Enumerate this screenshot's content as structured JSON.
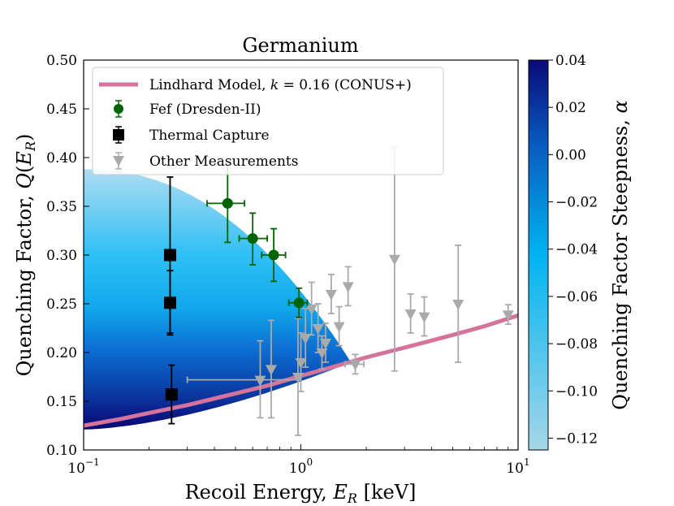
{
  "chart_data": {
    "type": "scatter",
    "title": "Germanium",
    "xlabel": "Recoil Energy, E_R [keV]",
    "ylabel": "Quenching Factor, Q(E_R)",
    "xscale": "log",
    "xlim": [
      0.1,
      10
    ],
    "ylim": [
      0.1,
      0.5
    ],
    "x_ticks": [
      {
        "value": 0.1,
        "base": "10",
        "exp": "−1"
      },
      {
        "value": 1,
        "base": "10",
        "exp": "0"
      },
      {
        "value": 10,
        "base": "10",
        "exp": "1"
      }
    ],
    "y_ticks": [
      {
        "value": 0.1,
        "label": "0.10"
      },
      {
        "value": 0.15,
        "label": "0.15"
      },
      {
        "value": 0.2,
        "label": "0.20"
      },
      {
        "value": 0.25,
        "label": "0.25"
      },
      {
        "value": 0.3,
        "label": "0.30"
      },
      {
        "value": 0.35,
        "label": "0.35"
      },
      {
        "value": 0.4,
        "label": "0.40"
      },
      {
        "value": 0.45,
        "label": "0.45"
      },
      {
        "value": 0.5,
        "label": "0.50"
      }
    ],
    "legend_position": "top-left",
    "series": [
      {
        "name": "Lindhard Model, k = 0.16 (CONUS+)",
        "legend_label": "Lindhard Model, k = 0.16 (CONUS+)",
        "kind": "line",
        "color": "#d6739c",
        "x": [
          0.1,
          0.15,
          0.2,
          0.3,
          0.5,
          0.7,
          1.0,
          1.5,
          2.0,
          3.0,
          5.0,
          7.0,
          10.0
        ],
        "y": [
          0.125,
          0.132,
          0.138,
          0.146,
          0.158,
          0.166,
          0.176,
          0.187,
          0.195,
          0.205,
          0.218,
          0.227,
          0.238
        ]
      },
      {
        "name": "Fef (Dresden-II)",
        "legend_label": "Fef (Dresden-II)",
        "kind": "points",
        "marker": "circle",
        "color": "#006400",
        "points": [
          {
            "x": 0.46,
            "y": 0.353,
            "xlo": 0.37,
            "xhi": 0.55,
            "ylo": 0.313,
            "yhi": 0.393
          },
          {
            "x": 0.6,
            "y": 0.317,
            "xlo": 0.52,
            "xhi": 0.7,
            "ylo": 0.29,
            "yhi": 0.343
          },
          {
            "x": 0.75,
            "y": 0.3,
            "xlo": 0.66,
            "xhi": 0.85,
            "ylo": 0.273,
            "yhi": 0.327
          },
          {
            "x": 0.98,
            "y": 0.251,
            "xlo": 0.88,
            "xhi": 1.07,
            "ylo": 0.236,
            "yhi": 0.266
          }
        ]
      },
      {
        "name": "Thermal Capture",
        "legend_label": "Thermal Capture",
        "kind": "points",
        "marker": "square",
        "color": "#000000",
        "points": [
          {
            "x": 0.25,
            "y": 0.3,
            "ylo": 0.22,
            "yhi": 0.38
          },
          {
            "x": 0.25,
            "y": 0.251,
            "ylo": 0.218,
            "yhi": 0.284
          },
          {
            "x": 0.254,
            "y": 0.157,
            "ylo": 0.127,
            "yhi": 0.187
          }
        ]
      },
      {
        "name": "Other Measurements",
        "legend_label": "Other Measurements",
        "kind": "points",
        "marker": "triangle_down",
        "color": "#aaaaaa",
        "points": [
          {
            "x": 0.65,
            "y": 0.172,
            "xlo": 0.3,
            "xhi": 1.0,
            "ylo": 0.133,
            "yhi": 0.212
          },
          {
            "x": 0.73,
            "y": 0.183,
            "ylo": 0.133,
            "yhi": 0.233
          },
          {
            "x": 0.97,
            "y": 0.175,
            "ylo": 0.115,
            "yhi": 0.235
          },
          {
            "x": 1.0,
            "y": 0.19,
            "ylo": 0.16,
            "yhi": 0.22
          },
          {
            "x": 1.05,
            "y": 0.215,
            "ylo": 0.185,
            "yhi": 0.245
          },
          {
            "x": 1.12,
            "y": 0.245,
            "ylo": 0.218,
            "yhi": 0.272
          },
          {
            "x": 1.2,
            "y": 0.225,
            "ylo": 0.2,
            "yhi": 0.25
          },
          {
            "x": 1.25,
            "y": 0.2,
            "ylo": 0.183,
            "yhi": 0.217
          },
          {
            "x": 1.3,
            "y": 0.21,
            "ylo": 0.19,
            "yhi": 0.23
          },
          {
            "x": 1.38,
            "y": 0.26,
            "ylo": 0.24,
            "yhi": 0.28
          },
          {
            "x": 1.5,
            "y": 0.227,
            "ylo": 0.207,
            "yhi": 0.247
          },
          {
            "x": 1.65,
            "y": 0.268,
            "ylo": 0.248,
            "yhi": 0.288
          },
          {
            "x": 1.78,
            "y": 0.188,
            "xlo": 1.6,
            "xhi": 1.95,
            "ylo": 0.178,
            "yhi": 0.198
          },
          {
            "x": 2.7,
            "y": 0.296,
            "ylo": 0.181,
            "yhi": 0.411
          },
          {
            "x": 3.2,
            "y": 0.24,
            "ylo": 0.22,
            "yhi": 0.26
          },
          {
            "x": 3.7,
            "y": 0.237,
            "ylo": 0.217,
            "yhi": 0.257
          },
          {
            "x": 5.3,
            "y": 0.25,
            "ylo": 0.19,
            "yhi": 0.31
          },
          {
            "x": 9.0,
            "y": 0.239,
            "ylo": 0.229,
            "yhi": 0.249
          }
        ]
      }
    ],
    "band": {
      "name": "Quenching factor steepness band",
      "x_end": 1.7,
      "y_end": 0.19,
      "upper_at_xmin": 0.388,
      "lower_at_xmin": 0.121
    },
    "colorbar": {
      "label": "Quenching Factor Steepness, α",
      "range": [
        -0.125,
        0.04
      ],
      "ticks": [
        {
          "value": 0.04,
          "label": "0.04"
        },
        {
          "value": 0.02,
          "label": "0.02"
        },
        {
          "value": 0.0,
          "label": "0.00"
        },
        {
          "value": -0.02,
          "label": "−0.02"
        },
        {
          "value": -0.04,
          "label": "−0.04"
        },
        {
          "value": -0.06,
          "label": "−0.06"
        },
        {
          "value": -0.08,
          "label": "−0.08"
        },
        {
          "value": -0.1,
          "label": "−0.10"
        },
        {
          "value": -0.12,
          "label": "−0.12"
        }
      ],
      "colors": [
        "#a6d6e8",
        "#00b4f0",
        "#0a5cc0",
        "#0a0a78"
      ]
    }
  }
}
